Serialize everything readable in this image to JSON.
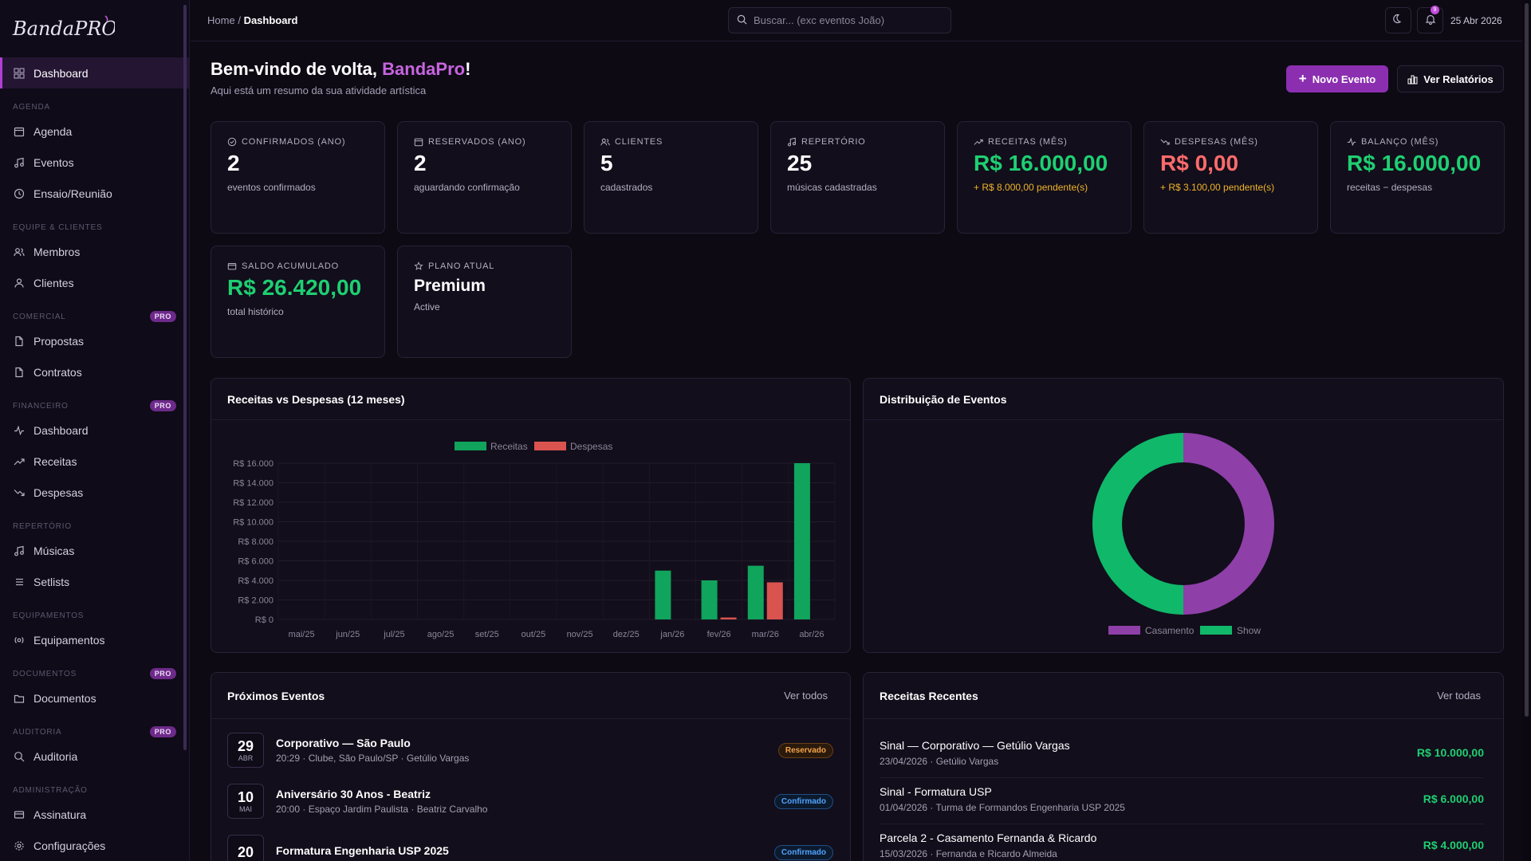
{
  "brand": {
    "logo_text": "BandaPRO"
  },
  "sidebar": {
    "dashboard": "Dashboard",
    "sections": [
      {
        "title": "AGENDA",
        "pro": "",
        "items": [
          "Agenda",
          "Eventos",
          "Ensaio/Reunião"
        ]
      },
      {
        "title": "EQUIPE & CLIENTES",
        "pro": "",
        "items": [
          "Membros",
          "Clientes"
        ]
      },
      {
        "title": "COMERCIAL",
        "pro": "PRO",
        "items": [
          "Propostas",
          "Contratos"
        ]
      },
      {
        "title": "FINANCEIRO",
        "pro": "PRO",
        "items": [
          "Dashboard",
          "Receitas",
          "Despesas"
        ]
      },
      {
        "title": "REPERTÓRIO",
        "pro": "",
        "items": [
          "Músicas",
          "Setlists"
        ]
      },
      {
        "title": "EQUIPAMENTOS",
        "pro": "",
        "items": [
          "Equipamentos"
        ]
      },
      {
        "title": "DOCUMENTOS",
        "pro": "PRO",
        "items": [
          "Documentos"
        ]
      },
      {
        "title": "AUDITORIA",
        "pro": "PRO",
        "items": [
          "Auditoria"
        ]
      },
      {
        "title": "ADMINISTRAÇÃO",
        "pro": "",
        "items": [
          "Assinatura",
          "Configurações"
        ]
      }
    ]
  },
  "topbar": {
    "breadcrumb_home": "Home",
    "breadcrumb_sep": "/",
    "breadcrumb_current": "Dashboard",
    "search_placeholder": "Buscar... (exc eventos João)",
    "notif_count": "9",
    "date": "25 Abr 2026"
  },
  "welcome": {
    "title_prefix": "Bem-vindo de volta, ",
    "title_name": "BandaPro",
    "title_suffix": "!",
    "subtitle": "Aqui está um resumo da sua atividade artística",
    "new_event": "Novo Evento",
    "reports": "Ver Relatórios"
  },
  "cards": [
    {
      "label": "CONFIRMADOS (ANO)",
      "icon": "check-circle-icon",
      "value": "2",
      "sub": "eventos confirmados",
      "tone": ""
    },
    {
      "label": "RESERVADOS (ANO)",
      "icon": "calendar-icon",
      "value": "2",
      "sub": "aguardando confirmação",
      "tone": ""
    },
    {
      "label": "CLIENTES",
      "icon": "users-icon",
      "value": "5",
      "sub": "cadastrados",
      "tone": ""
    },
    {
      "label": "REPERTÓRIO",
      "icon": "music-icon",
      "value": "25",
      "sub": "músicas cadastradas",
      "tone": ""
    },
    {
      "label": "RECEITAS (MÊS)",
      "icon": "trending-up-icon",
      "value": "R$ 16.000,00",
      "sub": "+ R$ 8.000,00 pendente(s)",
      "tone": "green"
    },
    {
      "label": "DESPESAS (MÊS)",
      "icon": "trending-down-icon",
      "value": "R$ 0,00",
      "sub": "+ R$ 3.100,00 pendente(s)",
      "tone": "red"
    },
    {
      "label": "BALANÇO (MÊS)",
      "icon": "activity-icon",
      "value": "R$ 16.000,00",
      "sub": "receitas − despesas",
      "tone": "green"
    },
    {
      "label": "SALDO ACUMULADO",
      "icon": "wallet-icon",
      "value": "R$ 26.420,00",
      "sub": "total histórico",
      "tone": "green"
    },
    {
      "label": "PLANO ATUAL",
      "icon": "star-icon",
      "value": "Premium",
      "sub": "Active",
      "tone": "plan"
    }
  ],
  "chart_panel_title": "Receitas vs Despesas (12 meses)",
  "dist_panel_title": "Distribuição de Eventos",
  "chart_data": [
    {
      "type": "bar",
      "categories": [
        "mai/25",
        "jun/25",
        "jul/25",
        "ago/25",
        "set/25",
        "out/25",
        "nov/25",
        "dez/25",
        "jan/26",
        "fev/26",
        "mar/26",
        "abr/26"
      ],
      "series": [
        {
          "name": "Receitas",
          "color": "#10a45c",
          "values": [
            0,
            0,
            0,
            0,
            0,
            0,
            0,
            0,
            5000,
            4000,
            5500,
            16000
          ]
        },
        {
          "name": "Despesas",
          "color": "#d9534f",
          "values": [
            0,
            0,
            0,
            0,
            0,
            0,
            0,
            0,
            0,
            200,
            3800,
            0
          ]
        }
      ],
      "yticks": [
        "R$ 0",
        "R$ 2.000",
        "R$ 4.000",
        "R$ 6.000",
        "R$ 8.000",
        "R$ 10.000",
        "R$ 12.000",
        "R$ 14.000",
        "R$ 16.000"
      ],
      "ylim": [
        0,
        16000
      ],
      "legend": "top"
    },
    {
      "type": "pie",
      "donut": true,
      "categories": [
        "Casamento",
        "Show"
      ],
      "values": [
        1,
        1
      ],
      "colors": [
        "#8e3fa8",
        "#10b86a"
      ],
      "legend": "bottom"
    }
  ],
  "events_panel": {
    "title": "Próximos Eventos",
    "link": "Ver todos",
    "items": [
      {
        "day": "29",
        "month": "ABR",
        "name": "Corporativo — São Paulo",
        "sub": "20:29 · Clube, São Paulo/SP · Getúlio Vargas",
        "status": "Reservado",
        "kind": "reserv"
      },
      {
        "day": "10",
        "month": "MAI",
        "name": "Aniversário 30 Anos - Beatriz",
        "sub": "20:00 · Espaço Jardim Paulista · Beatriz Carvalho",
        "status": "Confirmado",
        "kind": "conf"
      },
      {
        "day": "20",
        "month": "",
        "name": "Formatura Engenharia USP 2025",
        "sub": "",
        "status": "Confirmado",
        "kind": "conf"
      }
    ]
  },
  "receipts_panel": {
    "title": "Receitas Recentes",
    "link": "Ver todas",
    "items": [
      {
        "name": "Sinal — Corporativo — Getúlio Vargas",
        "sub": "23/04/2026 · Getúlio Vargas",
        "value": "R$ 10.000,00"
      },
      {
        "name": "Sinal - Formatura USP",
        "sub": "01/04/2026 · Turma de Formandos Engenharia USP 2025",
        "value": "R$ 6.000,00"
      },
      {
        "name": "Parcela 2 - Casamento Fernanda & Ricardo",
        "sub": "15/03/2026 · Fernanda e Ricardo Almeida",
        "value": "R$ 4.000,00"
      }
    ]
  }
}
